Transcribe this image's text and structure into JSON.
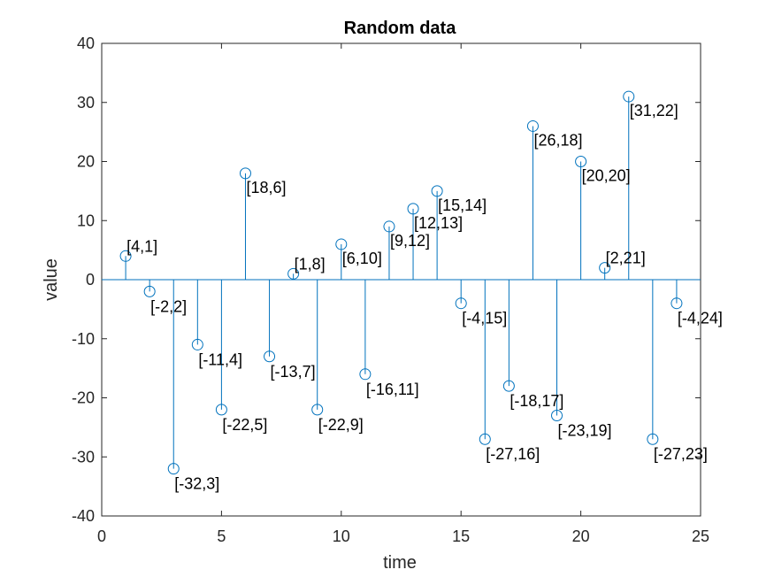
{
  "chart_data": {
    "type": "stem",
    "title": "Random data",
    "xlabel": "time",
    "ylabel": "value",
    "xlim": [
      0,
      25
    ],
    "ylim": [
      -40,
      40
    ],
    "x_ticks": [
      0,
      5,
      10,
      15,
      20,
      25
    ],
    "y_ticks": [
      -40,
      -30,
      -20,
      -10,
      0,
      10,
      20,
      30,
      40
    ],
    "grid": false,
    "box": true,
    "marker": "open-circle",
    "colors": {
      "stem": "#0072BD",
      "axis": "#262626",
      "text": "#000000"
    },
    "points": [
      {
        "x": 1,
        "y": 4,
        "label": "[4,1]"
      },
      {
        "x": 2,
        "y": -2,
        "label": "[-2,2]"
      },
      {
        "x": 3,
        "y": -32,
        "label": "[-32,3]"
      },
      {
        "x": 4,
        "y": -11,
        "label": "[-11,4]"
      },
      {
        "x": 5,
        "y": -22,
        "label": "[-22,5]"
      },
      {
        "x": 6,
        "y": 18,
        "label": "[18,6]"
      },
      {
        "x": 7,
        "y": -13,
        "label": "[-13,7]"
      },
      {
        "x": 8,
        "y": 1,
        "label": "[1,8]"
      },
      {
        "x": 9,
        "y": -22,
        "label": "[-22,9]"
      },
      {
        "x": 10,
        "y": 6,
        "label": "[6,10]"
      },
      {
        "x": 11,
        "y": -16,
        "label": "[-16,11]"
      },
      {
        "x": 12,
        "y": 9,
        "label": "[9,12]"
      },
      {
        "x": 13,
        "y": 12,
        "label": "[12,13]"
      },
      {
        "x": 14,
        "y": 15,
        "label": "[15,14]"
      },
      {
        "x": 15,
        "y": -4,
        "label": "[-4,15]"
      },
      {
        "x": 16,
        "y": -27,
        "label": "[-27,16]"
      },
      {
        "x": 17,
        "y": -18,
        "label": "[-18,17]"
      },
      {
        "x": 18,
        "y": 26,
        "label": "[26,18]"
      },
      {
        "x": 19,
        "y": -23,
        "label": "[-23,19]"
      },
      {
        "x": 20,
        "y": 20,
        "label": "[20,20]"
      },
      {
        "x": 21,
        "y": 2,
        "label": "[2,21]"
      },
      {
        "x": 22,
        "y": 31,
        "label": "[31,22]"
      },
      {
        "x": 23,
        "y": -27,
        "label": "[-27,23]"
      },
      {
        "x": 24,
        "y": -4,
        "label": "[-4,24]"
      }
    ]
  }
}
